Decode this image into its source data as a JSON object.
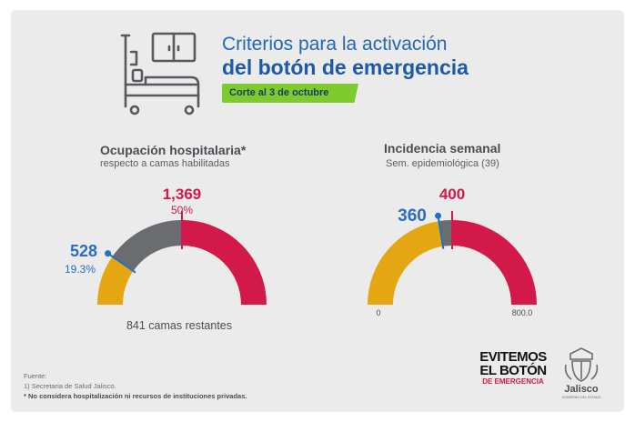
{
  "header": {
    "title_line1": "Criterios para la activación",
    "title_line2": "del botón de emergencia",
    "cutoff": "Corte al 3 de octubre"
  },
  "colors": {
    "red": "#d3184a",
    "gray": "#6a6c70",
    "yellow": "#e5a711",
    "blue": "#2d6cc0",
    "green": "#7ecb2e",
    "needle": "#1f72c8"
  },
  "chart_data": [
    {
      "type": "gauge",
      "title": "Ocupación hospitalaria*",
      "subtitle": "respecto a camas habilitadas",
      "total": 2738,
      "segments": [
        {
          "from": 0,
          "to": 528,
          "color": "yellow"
        },
        {
          "from": 528,
          "to": 1369,
          "color": "gray"
        },
        {
          "from": 1369,
          "to": 2738,
          "color": "red"
        }
      ],
      "current": {
        "value": 528,
        "label": "528",
        "percent_label": "19.3%"
      },
      "threshold": {
        "value": 1369,
        "label": "1,369",
        "percent_label": "50%"
      },
      "remaining_label": "841 camas restantes"
    },
    {
      "type": "gauge",
      "title": "Incidencia semanal",
      "subtitle": "Sem. epidemiológica (39)",
      "range": [
        0,
        800
      ],
      "segments": [
        {
          "from": 0,
          "to": 360,
          "color": "yellow"
        },
        {
          "from": 360,
          "to": 400,
          "color": "gray"
        },
        {
          "from": 400,
          "to": 800,
          "color": "red"
        }
      ],
      "current": {
        "value": 360,
        "label": "360"
      },
      "threshold": {
        "value": 400,
        "label": "400"
      },
      "min_label": "0",
      "max_label": "800.0"
    }
  ],
  "footer": {
    "source_label": "Fuente:",
    "source": "1) Secretaria de Salud Jalisco.",
    "note": "* No considera hospitalización ni recursos de instituciones privadas.",
    "campaign": [
      "EVITEMOS",
      "EL BOTÓN",
      "DE EMERGENCIA"
    ],
    "gov_name": "Jalisco",
    "gov_sub": "GOBIERNO DEL ESTADO"
  }
}
